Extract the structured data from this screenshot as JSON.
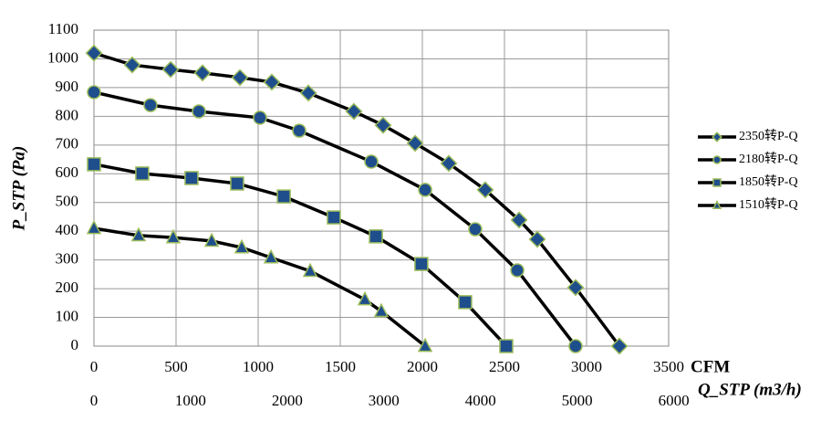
{
  "chart_data": {
    "type": "line",
    "y_label": "P_STP (Pa)",
    "x_label": "CFM",
    "x2_label": "Q_STP (m3/h)",
    "xlim": [
      0,
      3500
    ],
    "xticks": [
      0,
      500,
      1000,
      1500,
      2000,
      2500,
      3000,
      3500
    ],
    "x2lim": [
      0,
      5947
    ],
    "x2ticks": [
      0,
      1000,
      2000,
      3000,
      4000,
      5000,
      6000
    ],
    "ylim": [
      0,
      1100
    ],
    "yticks": [
      0,
      100,
      200,
      300,
      400,
      500,
      600,
      700,
      800,
      900,
      1000,
      1100
    ],
    "grid": true,
    "series": [
      {
        "name": "2350转P-Q",
        "color": "#000000",
        "marker": "diamond",
        "marker_color": "#1f4e8c",
        "x": [
          0,
          233,
          467,
          661,
          889,
          1083,
          1306,
          1583,
          1761,
          1956,
          2161,
          2383,
          2589,
          2700,
          2933,
          3200
        ],
        "values": [
          1020,
          979,
          963,
          951,
          935,
          919,
          881,
          817,
          769,
          706,
          636,
          544,
          439,
          372,
          204,
          0
        ]
      },
      {
        "name": "2180转P-Q",
        "color": "#000000",
        "marker": "circle",
        "marker_color": "#1f4e8c",
        "x": [
          0,
          344,
          639,
          1011,
          1250,
          1689,
          2017,
          2322,
          2578,
          2933
        ],
        "values": [
          884,
          839,
          817,
          795,
          750,
          642,
          544,
          407,
          264,
          0
        ]
      },
      {
        "name": "1850转P-Q",
        "color": "#000000",
        "marker": "square",
        "marker_color": "#1f4e8c",
        "x": [
          0,
          294,
          594,
          872,
          1156,
          1461,
          1717,
          1994,
          2261,
          2511
        ],
        "values": [
          633,
          601,
          585,
          566,
          521,
          448,
          382,
          286,
          153,
          0
        ]
      },
      {
        "name": "1510转P-Q",
        "color": "#000000",
        "marker": "triangle",
        "marker_color": "#1f4e8c",
        "x": [
          0,
          272,
          483,
          717,
          900,
          1078,
          1317,
          1650,
          1750,
          2017
        ],
        "values": [
          410,
          385,
          378,
          366,
          343,
          308,
          261,
          162,
          121,
          0
        ]
      }
    ]
  }
}
